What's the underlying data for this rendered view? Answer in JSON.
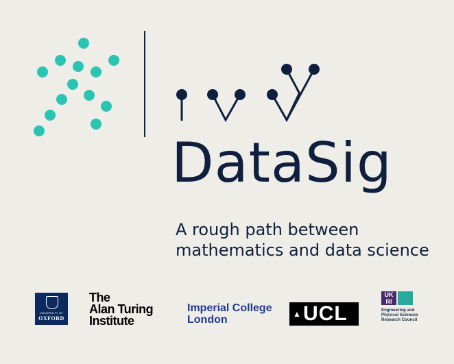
{
  "brand": {
    "name": "DataSig",
    "tagline_line1": "A rough path between",
    "tagline_line2": "mathematics and data science",
    "dot_color": "#2ac4b3",
    "ink_color": "#0f1f3d",
    "background": "#efede8"
  },
  "partners": {
    "oxford": {
      "uni": "UNIVERSITY OF",
      "name": "OXFORD"
    },
    "turing": {
      "line1": "The",
      "line2": "Alan Turing",
      "line3": "Institute"
    },
    "imperial": {
      "line1": "Imperial College",
      "line2": "London"
    },
    "ucl": {
      "name": "UCL"
    },
    "epsrc": {
      "mark": "UK RI",
      "line1": "Engineering and",
      "line2": "Physical Sciences",
      "line3": "Research Council"
    }
  }
}
